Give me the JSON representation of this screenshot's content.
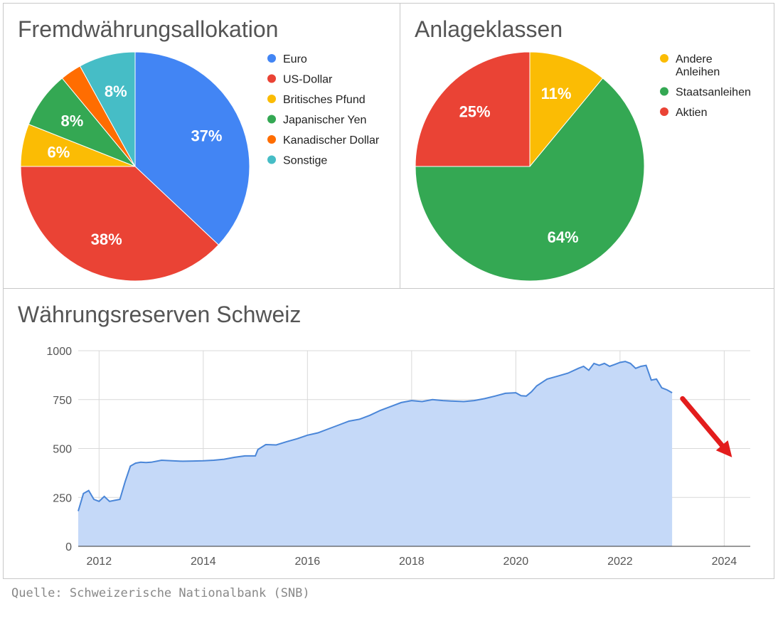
{
  "chart_data": [
    {
      "type": "pie",
      "title": "Fremdwährungsallokation",
      "labels": [
        "Euro",
        "US-Dollar",
        "Britisches Pfund",
        "Japanischer Yen",
        "Kanadischer Dollar",
        "Sonstige"
      ],
      "values": [
        37,
        38,
        6,
        8,
        3,
        8
      ],
      "slice_labels": [
        "37%",
        "38%",
        "6%",
        "8%",
        "",
        "8%"
      ],
      "colors": [
        "#4285F4",
        "#EA4335",
        "#FBBC04",
        "#34A853",
        "#FF6D01",
        "#46BDC6"
      ],
      "legend": "right"
    },
    {
      "type": "pie",
      "title": "Anlageklassen",
      "labels": [
        "Andere Anleihen",
        "Staatsanleihen",
        "Aktien"
      ],
      "legend_lines": [
        [
          "Andere",
          "Anleihen"
        ],
        [
          "Staatsanleihen"
        ],
        [
          "Aktien"
        ]
      ],
      "values": [
        11,
        64,
        25
      ],
      "slice_labels": [
        "11%",
        "64%",
        "25%"
      ],
      "colors": [
        "#FBBC04",
        "#34A853",
        "#EA4335"
      ],
      "legend": "right"
    },
    {
      "type": "area",
      "title": "Währungsreserven Schweiz",
      "xlim": [
        2011.6,
        2024.5
      ],
      "ylim": [
        0,
        1000
      ],
      "yticks": [
        0,
        250,
        500,
        750,
        1000
      ],
      "xticks": [
        2012,
        2014,
        2016,
        2018,
        2020,
        2022,
        2024
      ],
      "grid": true,
      "color": "#4A86D8",
      "fill": "#C5D9F8",
      "annotation": "red arrow pointing downward to the right (trend)",
      "series": [
        {
          "name": "Währungsreserven",
          "x": [
            2011.6,
            2011.7,
            2011.8,
            2011.9,
            2012.0,
            2012.1,
            2012.2,
            2012.3,
            2012.4,
            2012.5,
            2012.6,
            2012.7,
            2012.8,
            2012.9,
            2013.0,
            2013.2,
            2013.4,
            2013.6,
            2013.8,
            2014.0,
            2014.2,
            2014.4,
            2014.6,
            2014.8,
            2015.0,
            2015.05,
            2015.2,
            2015.4,
            2015.6,
            2015.8,
            2016.0,
            2016.2,
            2016.4,
            2016.6,
            2016.8,
            2017.0,
            2017.2,
            2017.4,
            2017.6,
            2017.8,
            2018.0,
            2018.2,
            2018.4,
            2018.6,
            2018.8,
            2019.0,
            2019.2,
            2019.4,
            2019.6,
            2019.8,
            2020.0,
            2020.1,
            2020.2,
            2020.3,
            2020.4,
            2020.6,
            2020.8,
            2021.0,
            2021.2,
            2021.3,
            2021.4,
            2021.5,
            2021.6,
            2021.7,
            2021.8,
            2021.9,
            2022.0,
            2022.1,
            2022.2,
            2022.3,
            2022.4,
            2022.5,
            2022.6,
            2022.7,
            2022.8,
            2022.9,
            2023.0
          ],
          "y": [
            180,
            270,
            285,
            240,
            230,
            255,
            230,
            235,
            240,
            330,
            410,
            425,
            430,
            428,
            430,
            440,
            437,
            435,
            436,
            437,
            440,
            445,
            455,
            462,
            462,
            495,
            520,
            518,
            535,
            550,
            568,
            580,
            600,
            620,
            640,
            650,
            670,
            695,
            715,
            735,
            745,
            740,
            750,
            745,
            742,
            740,
            745,
            755,
            768,
            782,
            785,
            770,
            768,
            790,
            820,
            855,
            870,
            885,
            910,
            920,
            900,
            935,
            925,
            935,
            920,
            930,
            940,
            945,
            935,
            910,
            920,
            925,
            850,
            855,
            810,
            800,
            785
          ]
        }
      ]
    }
  ],
  "source": "Quelle: Schweizerische Nationalbank (SNB)"
}
